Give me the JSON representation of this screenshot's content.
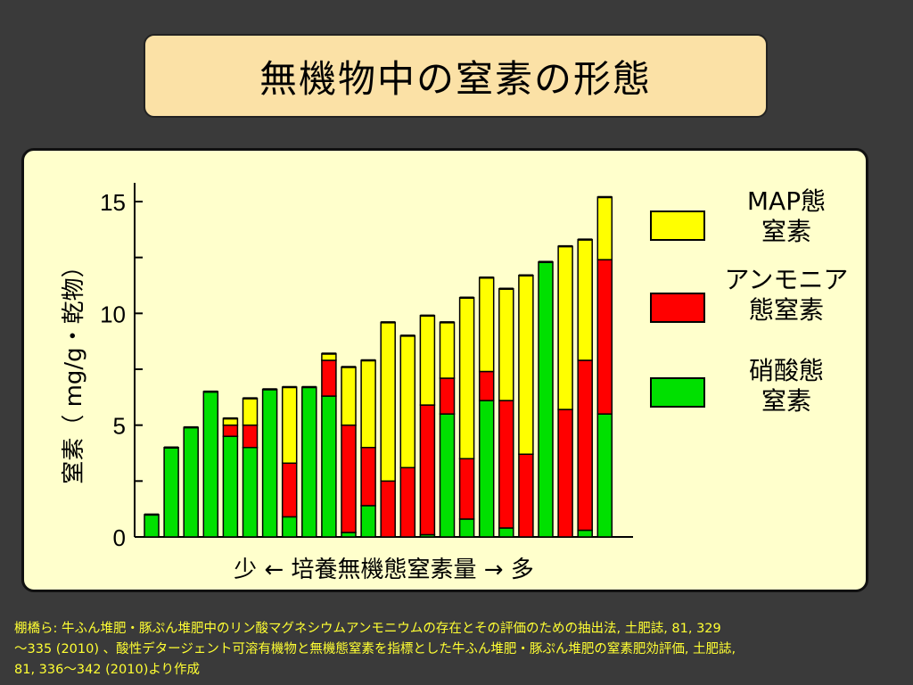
{
  "slide": {
    "title": "無機物中の窒素の形態",
    "citation": "棚橋ら: 牛ふん堆肥・豚ぷん堆肥中のリン酸マグネシウムアンモニウムの存在とその評価のための抽出法, 土肥誌, 81, 329\n～335 (2010) 、酸性デタージェント可溶有機物と無機態窒素を指標とした牛ふん堆肥・豚ぷん堆肥の窒素肥効評価, 土肥誌,\n81, 336～342 (2010)より作成"
  },
  "colors": {
    "map": "#ffff00",
    "ammonium": "#ff0000",
    "nitrate": "#00e000",
    "panel": "#ffffcc",
    "title_box": "#fbe1a6"
  },
  "chart_data": {
    "type": "bar",
    "stacked": true,
    "ylabel": "窒素（ mg/g・乾物）",
    "xlabel": "少 ← 培養無機態窒素量 → 多",
    "ylim": [
      0,
      15
    ],
    "yticks": [
      0,
      5,
      10,
      15
    ],
    "grid": false,
    "legend_position": "right",
    "series": [
      {
        "name": "硝酸態\n窒素",
        "color": "#00e000",
        "values": [
          1.0,
          4.0,
          4.9,
          6.5,
          4.5,
          4.0,
          6.6,
          0.9,
          6.7,
          6.3,
          0.2,
          1.4,
          0.0,
          0.0,
          0.1,
          5.5,
          0.8,
          6.1,
          0.4,
          0.0,
          12.3,
          0.0,
          0.3,
          5.5
        ]
      },
      {
        "name": "アンモニア\n態窒素",
        "color": "#ff0000",
        "values": [
          0.0,
          0.0,
          0.0,
          0.0,
          0.5,
          1.0,
          0.0,
          2.4,
          0.0,
          1.6,
          4.8,
          2.6,
          2.5,
          3.1,
          5.8,
          1.6,
          2.7,
          1.3,
          5.7,
          3.7,
          0.0,
          5.7,
          7.6,
          6.9
        ]
      },
      {
        "name": "MAP態\n窒素",
        "color": "#ffff00",
        "values": [
          0.0,
          0.0,
          0.0,
          0.0,
          0.3,
          1.2,
          0.0,
          3.4,
          0.0,
          0.3,
          2.6,
          3.9,
          7.1,
          5.9,
          4.0,
          2.5,
          7.2,
          4.2,
          5.0,
          8.0,
          0.0,
          7.3,
          5.4,
          2.8
        ]
      }
    ],
    "legend_order": [
      "MAP態\n窒素",
      "アンモニア\n態窒素",
      "硝酸態\n窒素"
    ]
  }
}
